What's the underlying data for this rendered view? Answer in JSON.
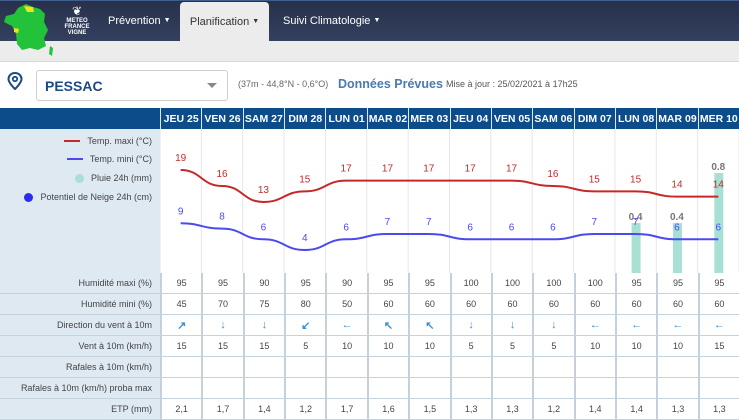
{
  "nav": {
    "logo_text": [
      "METEO",
      "FRANCE",
      "VIGNE"
    ],
    "items": [
      {
        "label": "Prévention",
        "active": false
      },
      {
        "label": "Planification",
        "active": true
      },
      {
        "label": "Suivi Climatologie",
        "active": false
      }
    ]
  },
  "location": {
    "selected": "PESSAC",
    "coords": "(37m - 44,8°N - 0,6°O)",
    "data_type": "Données Prévues",
    "updated": "Mise à jour : 25/02/2021 à 17h25"
  },
  "days": [
    "JEU 25",
    "VEN 26",
    "SAM 27",
    "DIM 28",
    "LUN 01",
    "MAR 02",
    "MER 03",
    "JEU 04",
    "VEN 05",
    "SAM 06",
    "DIM 07",
    "LUN 08",
    "MAR 09",
    "MER 10"
  ],
  "legend": [
    {
      "label": "Temp. maxi (°C)",
      "type": "line",
      "color": "#c62828"
    },
    {
      "label": "Temp. mini (°C)",
      "type": "line",
      "color": "#4a4af0"
    },
    {
      "label": "Pluie 24h (mm)",
      "type": "dot",
      "color": "#a8e0d4"
    },
    {
      "label": "Potentiel de Neige 24h (cm)",
      "type": "dot",
      "color": "#2b2bf0"
    }
  ],
  "chart_data": {
    "type": "line",
    "categories": [
      "JEU 25",
      "VEN 26",
      "SAM 27",
      "DIM 28",
      "LUN 01",
      "MAR 02",
      "MER 03",
      "JEU 04",
      "VEN 05",
      "SAM 06",
      "DIM 07",
      "LUN 08",
      "MAR 09",
      "MER 10"
    ],
    "series": [
      {
        "name": "Temp. maxi (°C)",
        "color": "#c62828",
        "values": [
          19,
          16,
          13,
          15,
          17,
          17,
          17,
          17,
          17,
          16,
          15,
          15,
          14,
          14
        ]
      },
      {
        "name": "Temp. mini (°C)",
        "color": "#4a4af0",
        "values": [
          9,
          8,
          6,
          4,
          6,
          7,
          7,
          6,
          6,
          6,
          7,
          7,
          6,
          6
        ]
      },
      {
        "name": "Pluie 24h (mm)",
        "type": "bar",
        "color": "#a8e0d4",
        "values": [
          0,
          0,
          0,
          0,
          0,
          0,
          0,
          0,
          0,
          0,
          0,
          0.4,
          0.4,
          0.8
        ]
      },
      {
        "name": "Potentiel de Neige 24h (cm)",
        "color": "#2b2bf0",
        "values": []
      }
    ]
  },
  "table": {
    "rows": [
      {
        "label": "Humidité maxi (%)",
        "values": [
          "95",
          "95",
          "90",
          "95",
          "90",
          "95",
          "95",
          "100",
          "100",
          "100",
          "100",
          "95",
          "95",
          "95"
        ]
      },
      {
        "label": "Humidité mini (%)",
        "values": [
          "45",
          "70",
          "75",
          "80",
          "50",
          "60",
          "60",
          "60",
          "60",
          "60",
          "60",
          "60",
          "60",
          "60"
        ]
      },
      {
        "label": "Direction du vent à 10m",
        "values": [
          "↗",
          "↓",
          "↓",
          "↙",
          "←",
          "↖",
          "↖",
          "↓",
          "↓",
          "↓",
          "←",
          "←",
          "←",
          "←"
        ]
      },
      {
        "label": "Vent à 10m (km/h)",
        "values": [
          "15",
          "15",
          "15",
          "5",
          "10",
          "10",
          "10",
          "5",
          "5",
          "5",
          "10",
          "10",
          "10",
          "15"
        ]
      },
      {
        "label": "Rafales à 10m (km/h)",
        "values": [
          "",
          "",
          "",
          "",
          "",
          "",
          "",
          "",
          "",
          "",
          "",
          "",
          "",
          ""
        ]
      },
      {
        "label": "Rafales à 10m (km/h) proba max",
        "values": [
          "",
          "",
          "",
          "",
          "",
          "",
          "",
          "",
          "",
          "",
          "",
          "",
          "",
          ""
        ]
      },
      {
        "label": "ETP (mm)",
        "values": [
          "2,1",
          "1,7",
          "1,4",
          "1,2",
          "1,7",
          "1,6",
          "1,5",
          "1,3",
          "1,3",
          "1,2",
          "1,4",
          "1,4",
          "1,3",
          "1,3"
        ]
      }
    ]
  }
}
